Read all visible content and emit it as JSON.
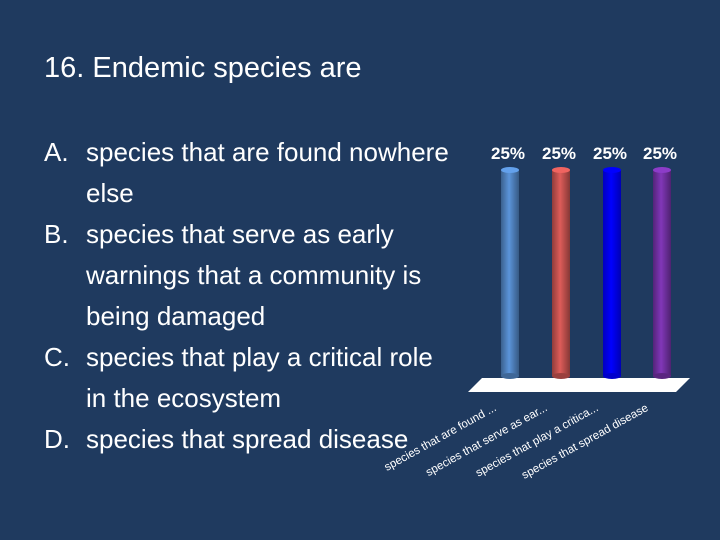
{
  "slide": {
    "title": "16.  Endemic species are"
  },
  "answers": [
    {
      "letter": "A.",
      "text": "species that are found nowhere else"
    },
    {
      "letter": "B.",
      "text": "species that serve as early warnings that a community is being damaged"
    },
    {
      "letter": "C.",
      "text": "species that play a critical role in the ecosystem"
    },
    {
      "letter": "D.",
      "text": "species that spread disease"
    }
  ],
  "chart_data": {
    "type": "bar",
    "categories": [
      "species that are found ...",
      "species that serve as ear...",
      "species that play a critica...",
      "species that spread disease"
    ],
    "values": [
      25,
      25,
      25,
      25
    ],
    "value_labels": [
      "25%",
      "25%",
      "25%",
      "25%"
    ],
    "ylim": [
      0,
      25
    ],
    "grid": false,
    "legend": "none",
    "colors": [
      "#4f81bd",
      "#c0504d",
      "#0000ff",
      "#7030a0"
    ]
  }
}
